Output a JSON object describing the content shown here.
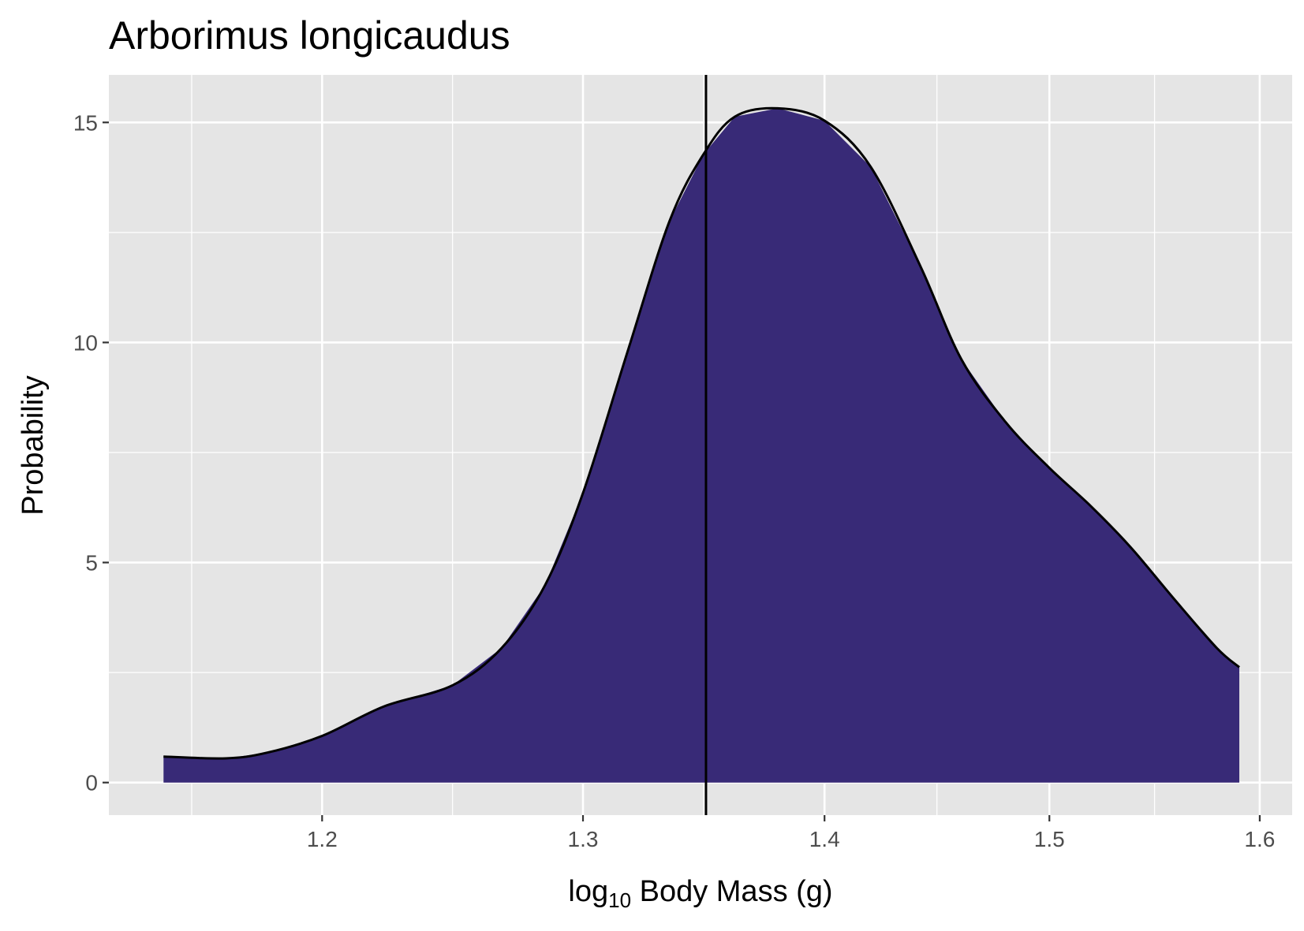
{
  "chart_data": {
    "type": "density",
    "title": "Arborimus longicaudus",
    "x_label_parts": [
      "log",
      "10",
      " Body Mass (g)"
    ],
    "y_label": "Probability",
    "x": [
      1.143,
      1.165,
      1.18,
      1.2,
      1.223,
      1.249,
      1.268,
      1.285,
      1.3,
      1.318,
      1.335,
      1.349,
      1.362,
      1.38,
      1.4,
      1.42,
      1.442,
      1.46,
      1.48,
      1.5,
      1.519,
      1.538,
      1.558,
      1.579,
      1.59
    ],
    "values": [
      0.59,
      0.55,
      0.68,
      1.06,
      1.73,
      2.21,
      3.06,
      4.49,
      6.58,
      9.81,
      12.76,
      14.28,
      15.13,
      15.32,
      15.04,
      13.99,
      11.71,
      9.62,
      8.19,
      7.15,
      6.29,
      5.34,
      4.2,
      3.06,
      2.62
    ],
    "fill": "#382a77",
    "line_color": "#000000",
    "vline": 1.35,
    "xscale": "log",
    "xlim": [
      1.124,
      1.616
    ],
    "xticks": [
      1.2,
      1.3,
      1.4,
      1.5,
      1.6
    ],
    "ylim": [
      -0.74,
      16.08
    ],
    "yticks": [
      0,
      5,
      10,
      15
    ],
    "grid": true,
    "panel_color": "#e5e5e5"
  }
}
